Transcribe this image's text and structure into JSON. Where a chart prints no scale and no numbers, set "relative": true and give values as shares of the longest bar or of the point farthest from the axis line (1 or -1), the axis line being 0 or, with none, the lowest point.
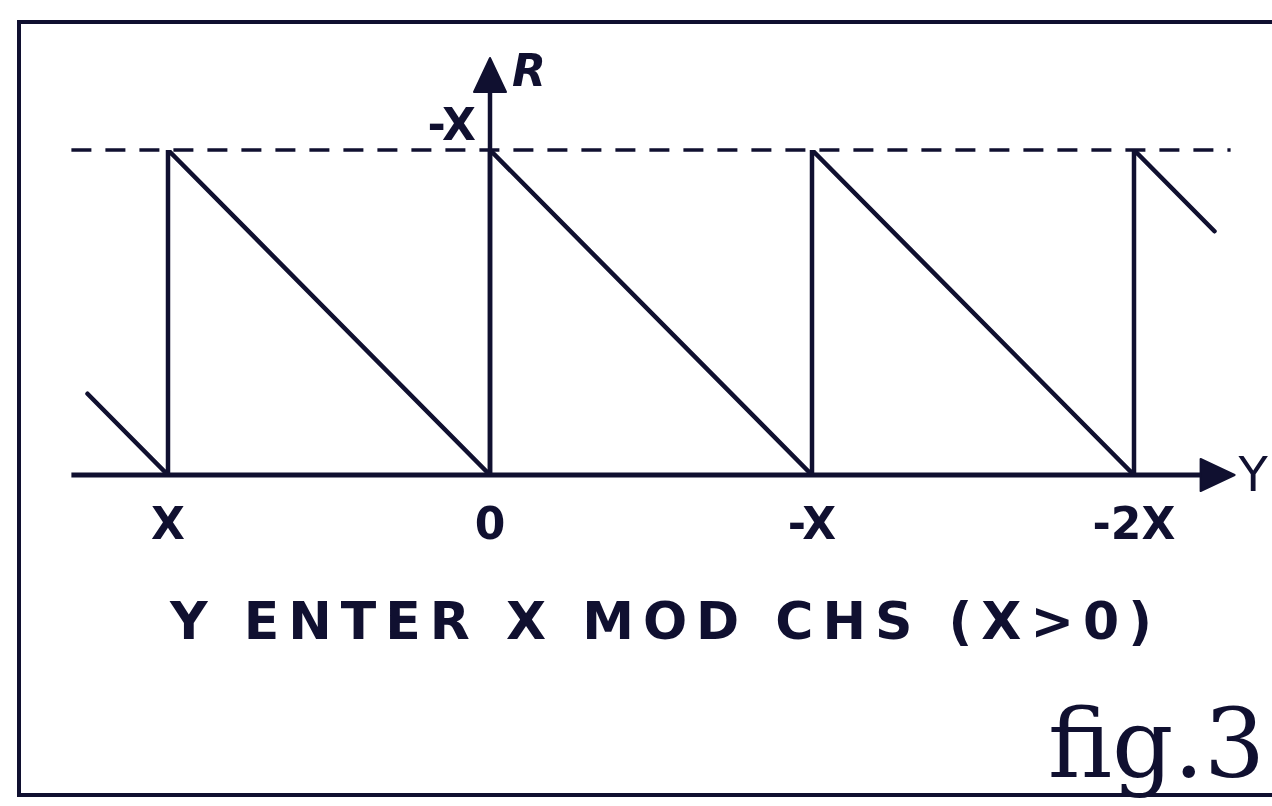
{
  "chart_data": {
    "type": "line",
    "relative": true,
    "xlabel": "Y",
    "ylabel": "R",
    "annotations": [
      "Y ENTER X MOD CHS (X>0)",
      "fig.3"
    ],
    "series": [
      {
        "color": "#101030",
        "x": [
          1.25,
          1,
          1,
          0,
          0,
          -1,
          -1,
          -2,
          -2,
          -2.25
        ],
        "values": [
          0.25,
          0,
          1,
          0,
          1,
          0,
          1,
          0,
          1,
          0.75
        ]
      }
    ],
    "xlim": [
      1.3,
      -2.3
    ],
    "xticks": [
      {
        "value": 1,
        "label": "X"
      },
      {
        "value": 0,
        "label": "0"
      },
      {
        "value": -1,
        "label": "-X"
      },
      {
        "value": -2,
        "label": "-2X"
      }
    ],
    "ref_lines": [
      {
        "axis": "y",
        "value": 1,
        "label": "-X",
        "line_style": "dashed"
      }
    ],
    "marker": "none",
    "line_style": "solid"
  }
}
